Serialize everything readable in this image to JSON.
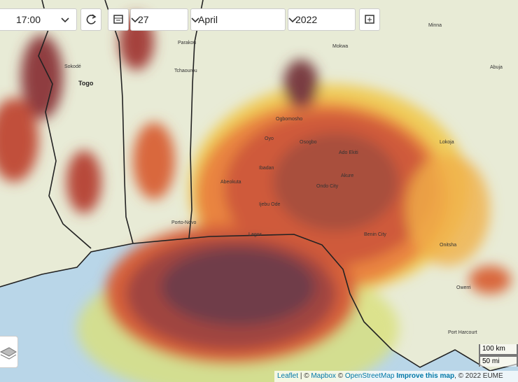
{
  "controls": {
    "time": "17:00",
    "day": "27",
    "month": "April",
    "year": "2022"
  },
  "map_labels": [
    "Togo",
    "Sokodé",
    "Parakou",
    "Tchaourou",
    "Minna",
    "Mokwa",
    "Abuja",
    "Ogbomosho",
    "Oyo",
    "Osogbo",
    "Ado Ekiti",
    "Ibadan",
    "Abeokuta",
    "Akure",
    "Ondo City",
    "Ijebu Ode",
    "Porto-Novo",
    "Lagos",
    "Benin City",
    "Onitsha",
    "Owerri",
    "Port Harcourt",
    "Lokoja"
  ],
  "scale": {
    "km": "100 km",
    "mi": "50 mi"
  },
  "attribution": {
    "leaflet": "Leaflet",
    "sep1": "| ©",
    "mapbox": "Mapbox",
    "sep2": "©",
    "osm": "OpenStreetMap",
    "improve": "Improve this map",
    "copyright": ", © 2022 EUME"
  }
}
